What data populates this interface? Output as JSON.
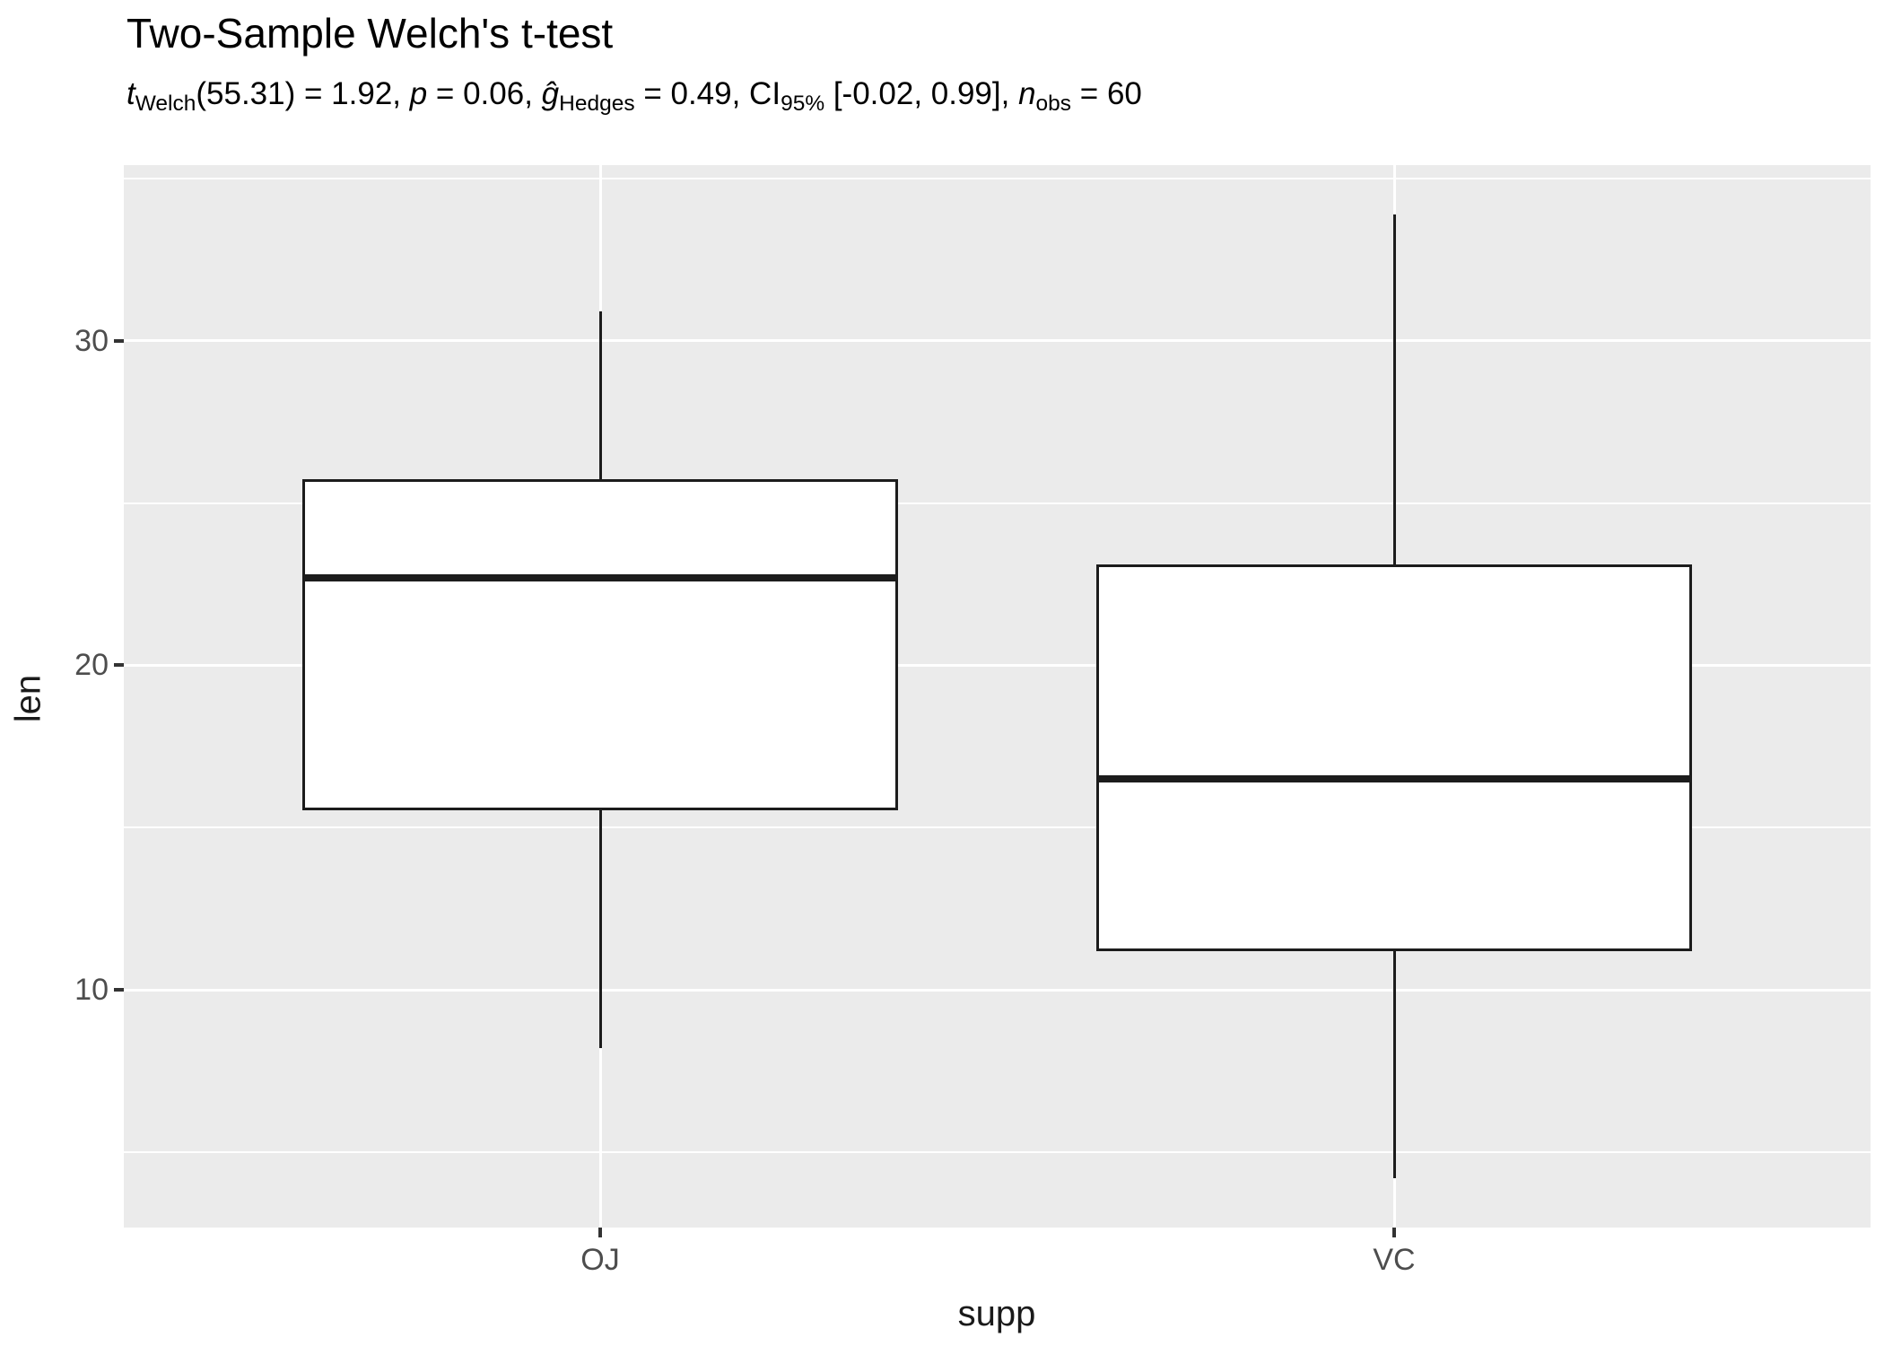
{
  "title": "Two-Sample Welch's t-test",
  "subtitle_segments": [
    {
      "t": "t",
      "style": "i"
    },
    {
      "t": "Welch",
      "style": "sub"
    },
    {
      "t": "(55.31) = 1.92, ",
      "style": ""
    },
    {
      "t": "p",
      "style": "i"
    },
    {
      "t": " = 0.06, ",
      "style": ""
    },
    {
      "t": "ĝ",
      "style": "i"
    },
    {
      "t": "Hedges",
      "style": "sub"
    },
    {
      "t": " = 0.49, CI",
      "style": ""
    },
    {
      "t": "95%",
      "style": "sub"
    },
    {
      "t": " [-0.02, 0.99], ",
      "style": ""
    },
    {
      "t": "n",
      "style": "i"
    },
    {
      "t": "obs",
      "style": "sub"
    },
    {
      "t": " = 60",
      "style": ""
    }
  ],
  "chart_data": {
    "type": "boxplot",
    "title": "Two-Sample Welch's t-test",
    "subtitle_plain": "t Welch(55.31) = 1.92, p = 0.06, g-hat Hedges = 0.49, CI 95% [-0.02, 0.99], n obs = 60",
    "xlabel": "supp",
    "ylabel": "len",
    "categories": [
      "OJ",
      "VC"
    ],
    "series": [
      {
        "label": "OJ",
        "whisker_low": 8.2,
        "q1": 15.53,
        "median": 22.7,
        "q3": 25.73,
        "whisker_high": 30.9
      },
      {
        "label": "VC",
        "whisker_low": 4.2,
        "q1": 11.2,
        "median": 16.5,
        "q3": 23.1,
        "whisker_high": 33.9
      }
    ],
    "y_axis": {
      "ticks": [
        10,
        20,
        30
      ],
      "minor_ticks": [
        5,
        15,
        25,
        35
      ],
      "min": 2.67,
      "max": 35.42
    },
    "grid": true,
    "legend": "none",
    "colors": {
      "panel_bg": "#EBEBEB",
      "grid": "#FFFFFF",
      "box_fill": "#FFFFFF",
      "box_border": "#1C1C1C",
      "tick": "#333333",
      "axis_text": "#4D4D4D",
      "axis_title": "#1a1a1a"
    }
  }
}
